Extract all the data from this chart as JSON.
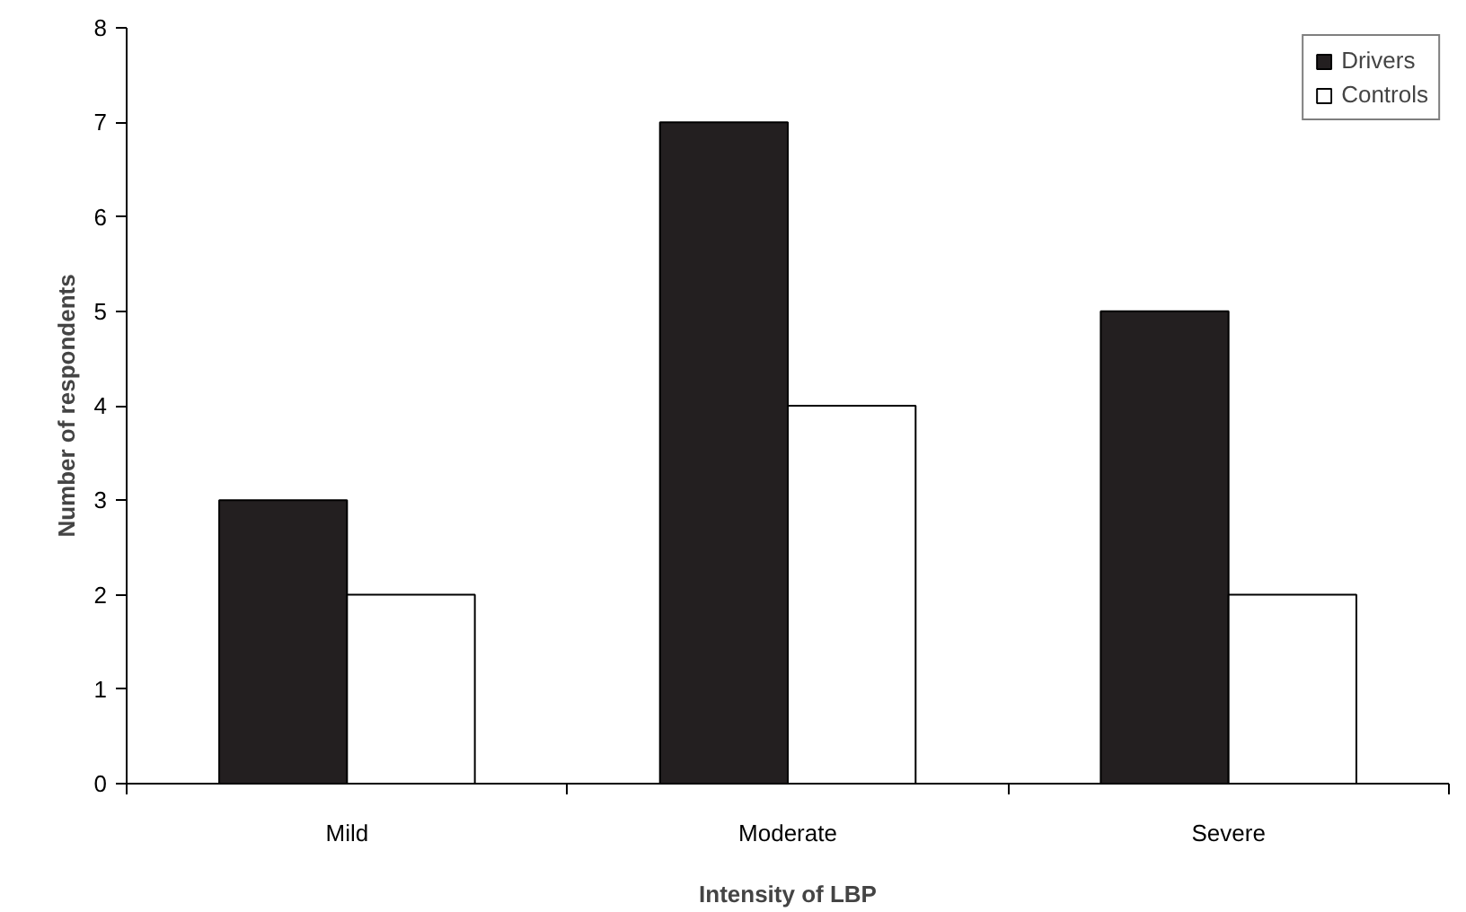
{
  "chart_data": {
    "type": "bar",
    "xlabel": "Intensity of LBP",
    "ylabel": "Number of respondents",
    "categories": [
      "Mild",
      "Moderate",
      "Severe"
    ],
    "series": [
      {
        "name": "Drivers",
        "color": "#231f20",
        "values": [
          3,
          7,
          5
        ]
      },
      {
        "name": "Controls",
        "color": "#ffffff",
        "values": [
          2,
          4,
          2
        ]
      }
    ],
    "ylim": [
      0,
      8
    ],
    "yticks": [
      0,
      1,
      2,
      3,
      4,
      5,
      6,
      7,
      8
    ],
    "grid": false,
    "legend": "top right"
  }
}
